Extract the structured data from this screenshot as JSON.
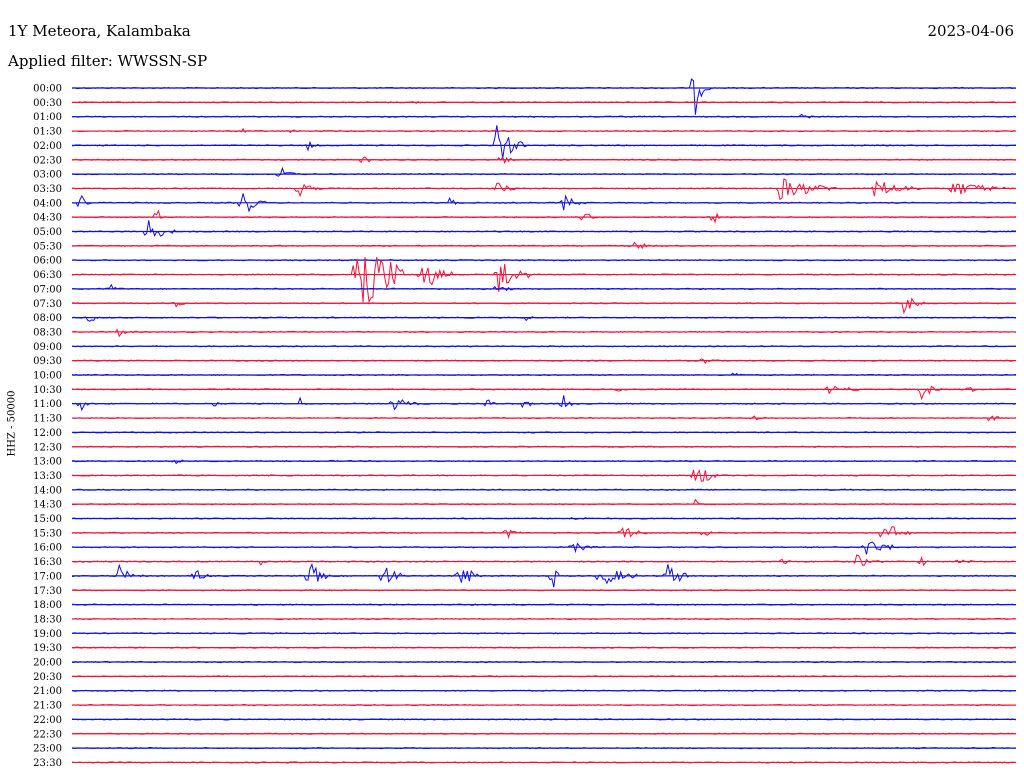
{
  "header": {
    "station": "1Y Meteora, Kalambaka",
    "date": "2023-04-06",
    "filter": "Applied filter: WWSSN-SP"
  },
  "chart_data": {
    "type": "line",
    "ylabel": "HHZ - 50000",
    "row_labels": [
      "00:00",
      "00:30",
      "01:00",
      "01:30",
      "02:00",
      "02:30",
      "03:00",
      "03:30",
      "04:00",
      "04:30",
      "05:00",
      "05:30",
      "06:00",
      "06:30",
      "07:00",
      "07:30",
      "08:00",
      "08:30",
      "09:00",
      "09:30",
      "10:00",
      "10:30",
      "11:00",
      "11:30",
      "12:00",
      "12:30",
      "13:00",
      "13:30",
      "14:00",
      "14:30",
      "15:00",
      "15:30",
      "16:00",
      "16:30",
      "17:00",
      "17:30",
      "18:00",
      "18:30",
      "19:00",
      "19:30",
      "20:00",
      "20:30",
      "21:00",
      "21:30",
      "22:00",
      "22:30",
      "23:00",
      "23:30"
    ],
    "series_colors": [
      "#1010e0",
      "#f0143c"
    ],
    "events": [
      {
        "row": 0,
        "t": 0.66,
        "amp": 30,
        "dur": 0.008
      },
      {
        "row": 1,
        "t": 0.36,
        "amp": 3,
        "dur": 0.01
      },
      {
        "row": 1,
        "t": 0.92,
        "amp": 2,
        "dur": 0.01
      },
      {
        "row": 2,
        "t": 0.77,
        "amp": 4,
        "dur": 0.015
      },
      {
        "row": 3,
        "t": 0.18,
        "amp": 4,
        "dur": 0.01
      },
      {
        "row": 3,
        "t": 0.23,
        "amp": 3,
        "dur": 0.008
      },
      {
        "row": 4,
        "t": 0.25,
        "amp": 5,
        "dur": 0.01
      },
      {
        "row": 4,
        "t": 0.45,
        "amp": 24,
        "dur": 0.02
      },
      {
        "row": 5,
        "t": 0.31,
        "amp": 12,
        "dur": 0.004
      },
      {
        "row": 5,
        "t": 0.45,
        "amp": 14,
        "dur": 0.01
      },
      {
        "row": 6,
        "t": 0.22,
        "amp": 8,
        "dur": 0.015
      },
      {
        "row": 7,
        "t": 0.24,
        "amp": 10,
        "dur": 0.015
      },
      {
        "row": 7,
        "t": 0.45,
        "amp": 8,
        "dur": 0.015
      },
      {
        "row": 7,
        "t": 0.75,
        "amp": 12,
        "dur": 0.05
      },
      {
        "row": 7,
        "t": 0.85,
        "amp": 10,
        "dur": 0.04
      },
      {
        "row": 7,
        "t": 0.93,
        "amp": 9,
        "dur": 0.05
      },
      {
        "row": 8,
        "t": 0.01,
        "amp": 14,
        "dur": 0.005
      },
      {
        "row": 8,
        "t": 0.18,
        "amp": 18,
        "dur": 0.015
      },
      {
        "row": 8,
        "t": 0.4,
        "amp": 10,
        "dur": 0.005
      },
      {
        "row": 8,
        "t": 0.52,
        "amp": 10,
        "dur": 0.015
      },
      {
        "row": 9,
        "t": 0.09,
        "amp": 12,
        "dur": 0.005
      },
      {
        "row": 9,
        "t": 0.54,
        "amp": 10,
        "dur": 0.01
      },
      {
        "row": 9,
        "t": 0.68,
        "amp": 10,
        "dur": 0.005
      },
      {
        "row": 10,
        "t": 0.08,
        "amp": 14,
        "dur": 0.02
      },
      {
        "row": 11,
        "t": 0.59,
        "amp": 5,
        "dur": 0.03
      },
      {
        "row": 13,
        "t": 0.3,
        "amp": 60,
        "dur": 0.04
      },
      {
        "row": 13,
        "t": 0.37,
        "amp": 20,
        "dur": 0.025
      },
      {
        "row": 13,
        "t": 0.45,
        "amp": 24,
        "dur": 0.025
      },
      {
        "row": 14,
        "t": 0.04,
        "amp": 6,
        "dur": 0.01
      },
      {
        "row": 14,
        "t": 0.45,
        "amp": 10,
        "dur": 0.01
      },
      {
        "row": 15,
        "t": 0.11,
        "amp": 5,
        "dur": 0.008
      },
      {
        "row": 15,
        "t": 0.88,
        "amp": 12,
        "dur": 0.015
      },
      {
        "row": 16,
        "t": 0.02,
        "amp": 12,
        "dur": 0.005
      },
      {
        "row": 16,
        "t": 0.48,
        "amp": 4,
        "dur": 0.01
      },
      {
        "row": 17,
        "t": 0.05,
        "amp": 8,
        "dur": 0.01
      },
      {
        "row": 19,
        "t": 0.67,
        "amp": 6,
        "dur": 0.01
      },
      {
        "row": 20,
        "t": 0.7,
        "amp": 4,
        "dur": 0.01
      },
      {
        "row": 21,
        "t": 0.58,
        "amp": 6,
        "dur": 0.01
      },
      {
        "row": 21,
        "t": 0.8,
        "amp": 6,
        "dur": 0.03
      },
      {
        "row": 21,
        "t": 0.9,
        "amp": 10,
        "dur": 0.015
      },
      {
        "row": 21,
        "t": 0.95,
        "amp": 8,
        "dur": 0.005
      },
      {
        "row": 22,
        "t": 0.01,
        "amp": 14,
        "dur": 0.005
      },
      {
        "row": 22,
        "t": 0.15,
        "amp": 6,
        "dur": 0.005
      },
      {
        "row": 22,
        "t": 0.24,
        "amp": 10,
        "dur": 0.005
      },
      {
        "row": 22,
        "t": 0.34,
        "amp": 8,
        "dur": 0.02
      },
      {
        "row": 22,
        "t": 0.44,
        "amp": 14,
        "dur": 0.005
      },
      {
        "row": 22,
        "t": 0.48,
        "amp": 12,
        "dur": 0.005
      },
      {
        "row": 22,
        "t": 0.52,
        "amp": 14,
        "dur": 0.008
      },
      {
        "row": 23,
        "t": 0.72,
        "amp": 4,
        "dur": 0.015
      },
      {
        "row": 23,
        "t": 0.97,
        "amp": 4,
        "dur": 0.015
      },
      {
        "row": 26,
        "t": 0.11,
        "amp": 3,
        "dur": 0.01
      },
      {
        "row": 27,
        "t": 0.66,
        "amp": 20,
        "dur": 0.015
      },
      {
        "row": 28,
        "t": 0.82,
        "amp": 3,
        "dur": 0.01
      },
      {
        "row": 29,
        "t": 0.66,
        "amp": 6,
        "dur": 0.005
      },
      {
        "row": 30,
        "t": 0.53,
        "amp": 3,
        "dur": 0.02
      },
      {
        "row": 31,
        "t": 0.46,
        "amp": 8,
        "dur": 0.01
      },
      {
        "row": 31,
        "t": 0.58,
        "amp": 10,
        "dur": 0.02
      },
      {
        "row": 31,
        "t": 0.67,
        "amp": 12,
        "dur": 0.005
      },
      {
        "row": 31,
        "t": 0.86,
        "amp": 14,
        "dur": 0.02
      },
      {
        "row": 32,
        "t": 0.53,
        "amp": 6,
        "dur": 0.02
      },
      {
        "row": 32,
        "t": 0.84,
        "amp": 10,
        "dur": 0.03
      },
      {
        "row": 33,
        "t": 0.2,
        "amp": 8,
        "dur": 0.005
      },
      {
        "row": 33,
        "t": 0.75,
        "amp": 6,
        "dur": 0.01
      },
      {
        "row": 33,
        "t": 0.83,
        "amp": 8,
        "dur": 0.02
      },
      {
        "row": 33,
        "t": 0.9,
        "amp": 8,
        "dur": 0.005
      },
      {
        "row": 33,
        "t": 0.94,
        "amp": 6,
        "dur": 0.01
      },
      {
        "row": 34,
        "t": 0.05,
        "amp": 12,
        "dur": 0.015
      },
      {
        "row": 34,
        "t": 0.13,
        "amp": 10,
        "dur": 0.01
      },
      {
        "row": 34,
        "t": 0.25,
        "amp": 18,
        "dur": 0.015
      },
      {
        "row": 34,
        "t": 0.33,
        "amp": 16,
        "dur": 0.015
      },
      {
        "row": 34,
        "t": 0.41,
        "amp": 18,
        "dur": 0.015
      },
      {
        "row": 34,
        "t": 0.51,
        "amp": 14,
        "dur": 0.005
      },
      {
        "row": 34,
        "t": 0.56,
        "amp": 12,
        "dur": 0.03
      },
      {
        "row": 34,
        "t": 0.63,
        "amp": 14,
        "dur": 0.02
      }
    ]
  }
}
